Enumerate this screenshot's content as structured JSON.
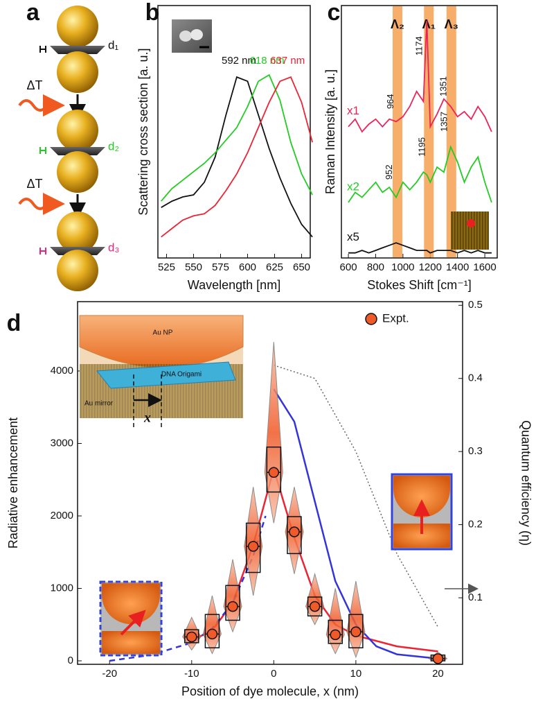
{
  "panel_a": {
    "panel": "a",
    "gaps": [
      "d₁",
      "d₂",
      "d₃"
    ],
    "steps": [
      "ΔT",
      "ΔT"
    ]
  },
  "chart_data": [
    {
      "type": "line",
      "panel": "b",
      "xlabel": "Wavelength [nm]",
      "ylabel": "Scattering cross section [a. u.]",
      "xlim": [
        517,
        658
      ],
      "xticks": [
        525,
        550,
        575,
        600,
        625,
        650
      ],
      "ylim": [
        0,
        1.2
      ],
      "x": [
        520,
        530,
        540,
        550,
        560,
        570,
        580,
        590,
        600,
        610,
        620,
        630,
        640,
        650,
        660
      ],
      "series": [
        {
          "color": "#111111",
          "values": [
            0.24,
            0.27,
            0.29,
            0.3,
            0.36,
            0.48,
            0.68,
            0.86,
            0.84,
            0.68,
            0.52,
            0.38,
            0.26,
            0.16,
            0.1
          ]
        },
        {
          "color": "#22cc22",
          "values": [
            0.27,
            0.33,
            0.37,
            0.41,
            0.45,
            0.5,
            0.56,
            0.62,
            0.72,
            0.84,
            0.87,
            0.75,
            0.55,
            0.4,
            0.3
          ]
        },
        {
          "color": "#ee2233",
          "values": [
            0.1,
            0.14,
            0.18,
            0.2,
            0.21,
            0.25,
            0.32,
            0.4,
            0.5,
            0.62,
            0.74,
            0.84,
            0.86,
            0.74,
            0.55
          ]
        }
      ],
      "annotations": [
        {
          "value": 592,
          "label": "592 nm",
          "color": "#111111"
        },
        {
          "value": 618,
          "label": "618 nm",
          "color": "#22cc22"
        },
        {
          "value": 637,
          "label": "637 nm",
          "color": "#ee2233"
        }
      ]
    },
    {
      "type": "line",
      "panel": "c",
      "xlabel": "Stokes Shift [cm⁻¹]",
      "ylabel": "Raman Intensity [a. u.]",
      "xlim": [
        549,
        1691
      ],
      "xticks": [
        600,
        800,
        1000,
        1200,
        1400,
        1600
      ],
      "ylim": [
        0,
        1
      ],
      "x": [
        600,
        650,
        700,
        750,
        800,
        850,
        900,
        950,
        1000,
        1050,
        1100,
        1150,
        1175,
        1200,
        1250,
        1300,
        1350,
        1400,
        1450,
        1500,
        1550,
        1600,
        1650
      ],
      "series": [
        {
          "name": "x1",
          "color": "#ee2255",
          "values": [
            0.52,
            0.55,
            0.5,
            0.53,
            0.55,
            0.52,
            0.55,
            0.54,
            0.56,
            0.6,
            0.66,
            0.62,
            0.94,
            0.52,
            0.57,
            0.63,
            0.6,
            0.56,
            0.58,
            0.55,
            0.6,
            0.56,
            0.5
          ]
        },
        {
          "name": "x2",
          "color": "#22cc22",
          "values": [
            0.22,
            0.26,
            0.24,
            0.27,
            0.3,
            0.26,
            0.28,
            0.24,
            0.3,
            0.27,
            0.3,
            0.34,
            0.33,
            0.3,
            0.36,
            0.34,
            0.44,
            0.38,
            0.3,
            0.36,
            0.4,
            0.3,
            0.22
          ]
        },
        {
          "name": "x5",
          "color": "#111111",
          "values": [
            0.02,
            0.02,
            0.03,
            0.02,
            0.03,
            0.04,
            0.05,
            0.06,
            0.05,
            0.04,
            0.03,
            0.03,
            0.03,
            0.02,
            0.03,
            0.03,
            0.03,
            0.02,
            0.03,
            0.02,
            0.03,
            0.02,
            0.02
          ]
        }
      ],
      "bands": [
        {
          "label": "Λ₂",
          "x": 960
        },
        {
          "label": "Λ₁",
          "x": 1190
        },
        {
          "label": "Λ₃",
          "x": 1355
        }
      ],
      "annotations": [
        {
          "x": 964,
          "y": 0.62
        },
        {
          "x": 1174,
          "y": 0.84
        },
        {
          "x": 1351,
          "y": 0.68
        },
        {
          "x": 952,
          "y": 0.34
        },
        {
          "x": 1195,
          "y": 0.44
        },
        {
          "x": 1357,
          "y": 0.54
        }
      ]
    },
    {
      "type": "box",
      "panel": "d",
      "xlabel": "Position of dye molecule, x (nm)",
      "ylabel": "Radiative enhancement",
      "y2label": "Quantum efficiency (η)",
      "xlim": [
        -23.9,
        23.0
      ],
      "xticks": [
        -20,
        -10,
        0,
        10,
        20
      ],
      "ylim": [
        -48,
        4957
      ],
      "yticks": [
        0,
        1000,
        2000,
        3000,
        4000
      ],
      "y2lim": [
        0.009,
        0.505
      ],
      "y2ticks": [
        0.1,
        0.2,
        0.3,
        0.4,
        0.5
      ],
      "legend": "upper right",
      "x": [
        -10,
        -7.5,
        -5,
        -2.5,
        0,
        2.5,
        5,
        7.5,
        10,
        20
      ],
      "series": [
        {
          "name": "Expt.",
          "color": "#f05a28",
          "values": [
            330,
            370,
            750,
            1580,
            2600,
            1780,
            750,
            360,
            400,
            30
          ],
          "q1": [
            250,
            180,
            560,
            1220,
            2330,
            1480,
            620,
            240,
            180,
            0
          ],
          "q3": [
            430,
            640,
            1040,
            1900,
            2950,
            1990,
            880,
            560,
            640,
            80
          ],
          "min": [
            150,
            100,
            400,
            900,
            1900,
            1200,
            500,
            100,
            50,
            -20
          ],
          "max": [
            600,
            900,
            1400,
            2400,
            4400,
            2400,
            1200,
            1000,
            1100,
            120
          ]
        }
      ],
      "lines": [
        {
          "color": "#ee2233",
          "style": "solid",
          "x": [
            -10,
            -7.5,
            -5,
            -2.5,
            0,
            2.5,
            5,
            7.5,
            10,
            15,
            20
          ],
          "values": [
            280,
            420,
            800,
            1600,
            2650,
            1700,
            900,
            500,
            350,
            200,
            130
          ]
        },
        {
          "color": "#3333dd",
          "style": "solid",
          "x": [
            0,
            2.5,
            5,
            7.5,
            10,
            12.5,
            15,
            20
          ],
          "values": [
            3750,
            3300,
            2200,
            1100,
            500,
            200,
            90,
            30
          ]
        },
        {
          "color": "#3333dd",
          "style": "dashed",
          "x": [
            -20,
            -15,
            -10,
            -7.5,
            -5,
            -2.5,
            -1
          ],
          "values": [
            0,
            80,
            250,
            450,
            800,
            1450,
            2000
          ]
        },
        {
          "color": "#666666",
          "style": "dotted",
          "axis": "y2",
          "x": [
            0,
            5,
            10,
            15,
            20
          ],
          "values": [
            0.418,
            0.4,
            0.3,
            0.16,
            0.06
          ]
        }
      ],
      "inset": [
        "Au NP",
        "DNA Origami",
        "Au mirror",
        "x"
      ]
    }
  ]
}
